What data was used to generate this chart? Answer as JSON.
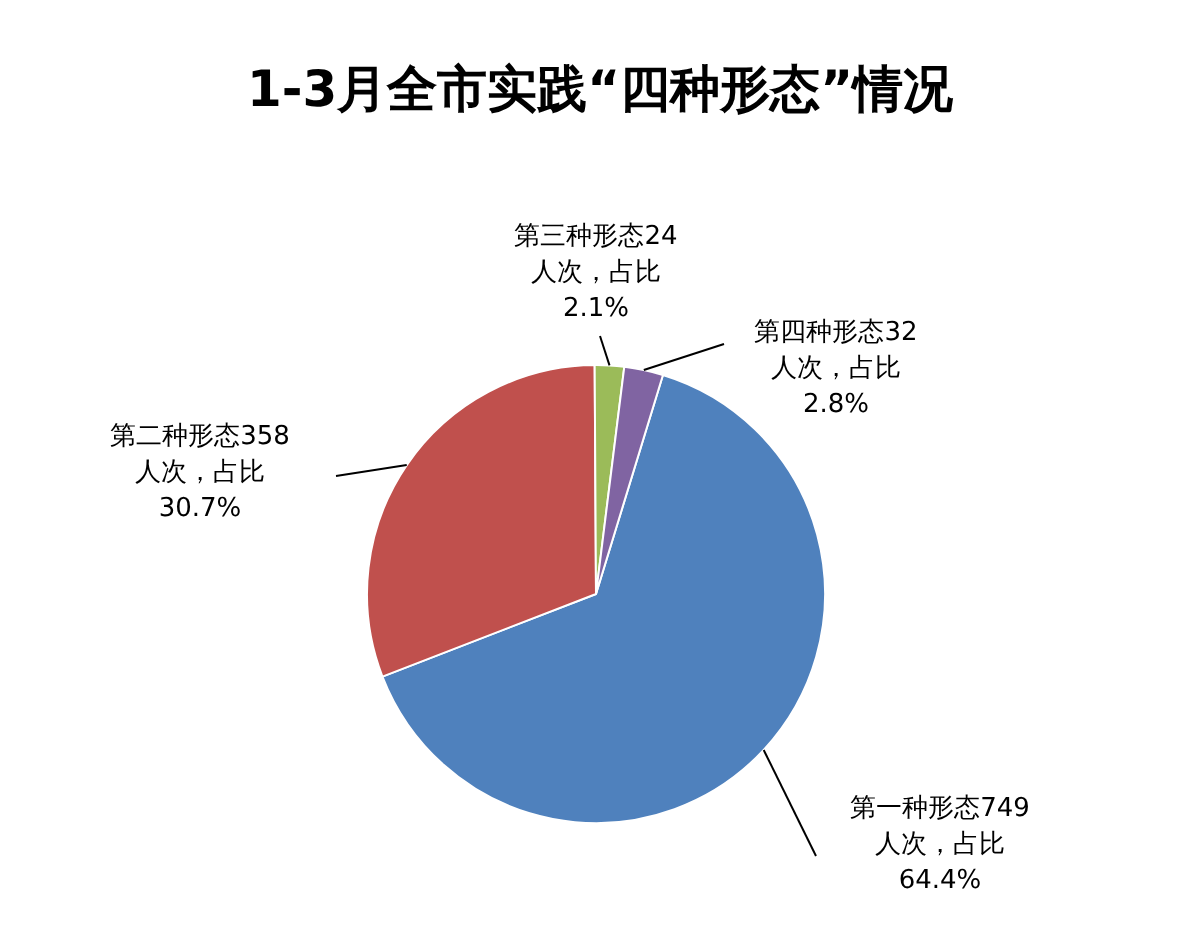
{
  "chart_data": {
    "type": "pie",
    "title": "1-3月全市实践“四种形态”情况",
    "categories": [
      "第一种形态",
      "第二种形态",
      "第三种形态",
      "第四种形态"
    ],
    "values": [
      749,
      358,
      24,
      32
    ],
    "colors": [
      "#4f81bd",
      "#c0504d",
      "#9bbb59",
      "#8064a2"
    ],
    "value_labels": [
      "749\n人次，占比\n64.4%",
      "358\n人次，占比\n30.7%",
      "24\n人次，占比\n2.1%",
      "32\n人次，占比\n2.8%"
    ],
    "legend": false
  }
}
